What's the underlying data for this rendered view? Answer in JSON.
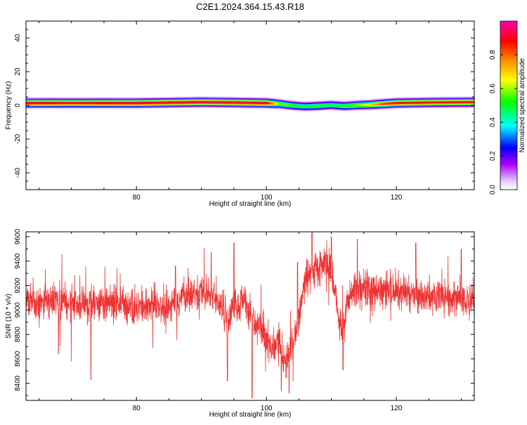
{
  "figure_title": "C2E1.2024.364.15.43.R18",
  "colors": {
    "snr_line": "#ee3333",
    "axis": "#000000",
    "background": "#ffffff"
  },
  "chart_data": [
    {
      "type": "heatmap",
      "title": "",
      "xlabel": "Height of straight line (km)",
      "ylabel": "Frequency (Hz)",
      "xlim": [
        63,
        132
      ],
      "ylim": [
        -50,
        50
      ],
      "x_ticks": [
        80,
        100,
        120
      ],
      "y_ticks": [
        -40,
        -20,
        0,
        20,
        40
      ],
      "colorbar": {
        "label": "Normalized spectral amplitude",
        "range": [
          0,
          1
        ],
        "ticks": [
          "0.0",
          "0.2",
          "0.4",
          "0.6",
          "0.8"
        ],
        "colormap": "rainbow (white-violet-blue-cyan-green-yellow-orange-red-magenta)"
      },
      "centerline": {
        "x": [
          63,
          70,
          80,
          90,
          95,
          100,
          102,
          104,
          106,
          108,
          110,
          112,
          114,
          116,
          118,
          120,
          125,
          132
        ],
        "freq": [
          1.5,
          1.5,
          1.5,
          2.0,
          1.8,
          1.5,
          1.0,
          0.0,
          -0.5,
          -0.2,
          0.3,
          -0.3,
          0.2,
          0.5,
          1.0,
          1.5,
          1.8,
          2.0
        ],
        "peak_amplitude": [
          0.95,
          0.9,
          0.95,
          0.95,
          0.95,
          0.95,
          0.6,
          0.55,
          0.5,
          0.55,
          0.5,
          0.55,
          0.6,
          0.7,
          0.85,
          0.9,
          0.9,
          0.9
        ]
      }
    },
    {
      "type": "line",
      "title": "",
      "xlabel": "Height of straight line (km)",
      "ylabel": "SNR (10 * v/v)",
      "xlim": [
        63,
        132
      ],
      "ylim": [
        8260,
        9640
      ],
      "x_ticks": [
        80,
        100,
        120
      ],
      "y_ticks": [
        8400,
        8600,
        8800,
        9000,
        9200,
        9400,
        9600
      ],
      "series": [
        {
          "trend_x": [
            63,
            66,
            70,
            75,
            80,
            85,
            88,
            91,
            93,
            94,
            95,
            96,
            97,
            98,
            99,
            100,
            101,
            102,
            103,
            104,
            105,
            106,
            107,
            108,
            109,
            110,
            111,
            111.5,
            112,
            113,
            115,
            118,
            120,
            125,
            128,
            132
          ],
          "trend_y": [
            9060,
            9080,
            9050,
            9060,
            9040,
            9030,
            9110,
            9150,
            9050,
            8900,
            9050,
            9080,
            9020,
            8900,
            8850,
            8780,
            8700,
            8750,
            8550,
            8720,
            8950,
            9250,
            9300,
            9350,
            9380,
            9330,
            9000,
            8850,
            8900,
            9150,
            9170,
            9170,
            9150,
            9120,
            9090,
            9100
          ],
          "noise_std": 75,
          "spikes": [
            {
              "x": 68,
              "y": 8640
            },
            {
              "x": 73,
              "y": 8430
            },
            {
              "x": 86,
              "y": 9360
            },
            {
              "x": 91.5,
              "y": 9470
            },
            {
              "x": 94,
              "y": 8420
            },
            {
              "x": 95,
              "y": 9550
            },
            {
              "x": 97.8,
              "y": 8280
            },
            {
              "x": 102.3,
              "y": 8340
            },
            {
              "x": 103.5,
              "y": 8320
            },
            {
              "x": 104.8,
              "y": 9390
            },
            {
              "x": 107,
              "y": 9630
            },
            {
              "x": 110,
              "y": 9600
            },
            {
              "x": 111.8,
              "y": 8510
            },
            {
              "x": 114,
              "y": 9580
            },
            {
              "x": 123,
              "y": 9550
            },
            {
              "x": 130,
              "y": 9500
            }
          ]
        }
      ]
    }
  ]
}
